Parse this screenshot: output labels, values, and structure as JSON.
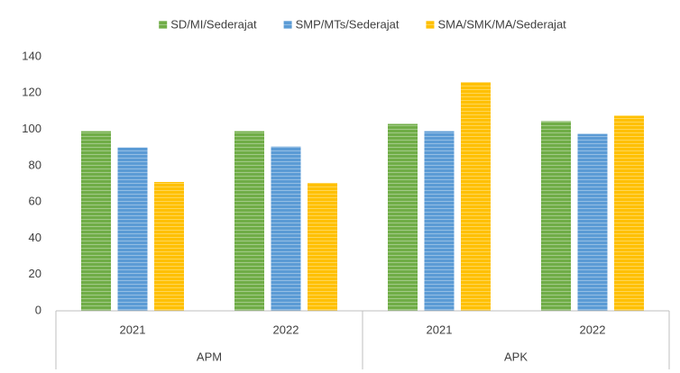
{
  "chart_data": {
    "type": "bar",
    "categories": [
      "2021",
      "2022",
      "2021",
      "2022"
    ],
    "groups": [
      {
        "name": "APM",
        "size": 2
      },
      {
        "name": "APK",
        "size": 2
      }
    ],
    "series": [
      {
        "name": "SD/MI/Sederajat",
        "color": "#70ad47",
        "values": [
          99,
          99,
          103,
          104.5
        ]
      },
      {
        "name": "SMP/MTs/Sederajat",
        "color": "#5b9bd5",
        "values": [
          90,
          90.5,
          99,
          97.5
        ]
      },
      {
        "name": "SMA/SMK/MA/Sederajat",
        "color": "#ffc000",
        "values": [
          71,
          70.5,
          126,
          107.5
        ]
      }
    ],
    "ylim": [
      0,
      140
    ],
    "yticks": [
      0,
      20,
      40,
      60,
      80,
      100,
      120,
      140
    ],
    "grid": false,
    "legend": "top"
  }
}
